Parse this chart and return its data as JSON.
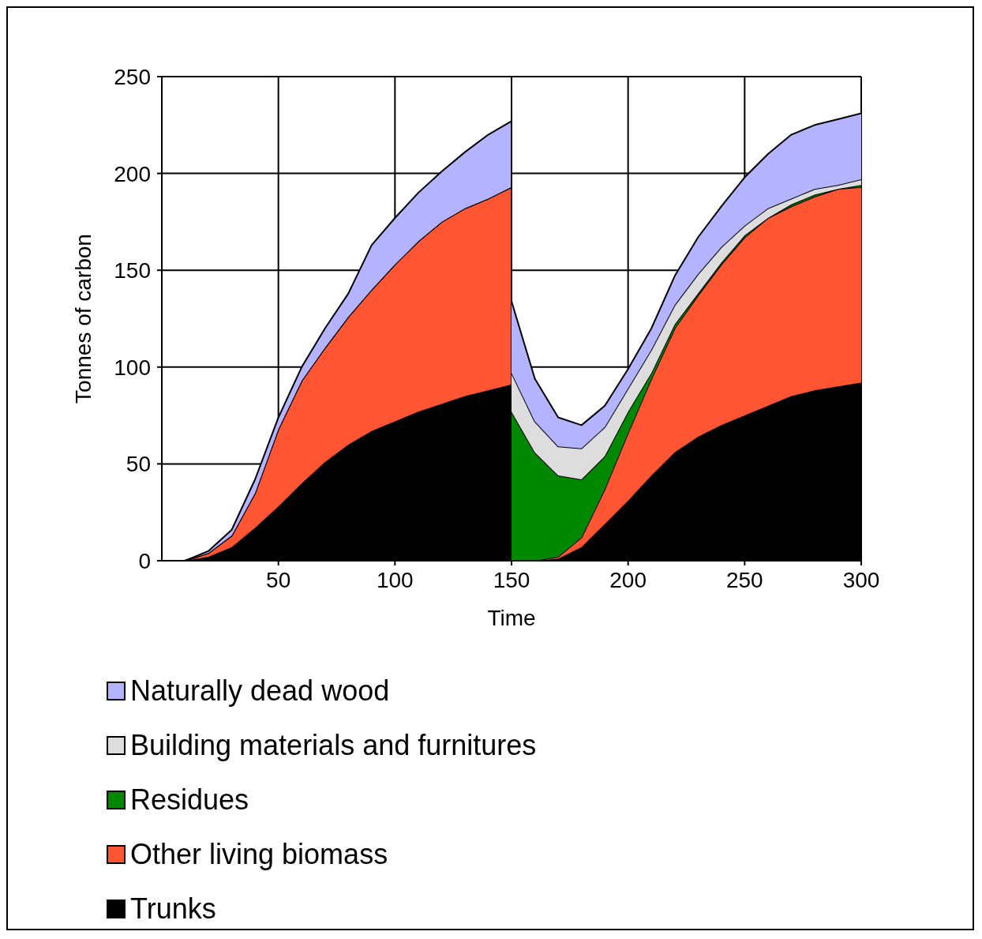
{
  "chart_data": {
    "type": "area",
    "stacked": true,
    "xlabel": "Time",
    "ylabel": "Tonnes of carbon",
    "x": [
      0,
      10,
      20,
      30,
      40,
      50,
      60,
      70,
      80,
      90,
      100,
      110,
      120,
      130,
      140,
      150,
      150,
      160,
      170,
      180,
      190,
      200,
      210,
      220,
      230,
      240,
      250,
      260,
      270,
      280,
      290,
      300
    ],
    "series": [
      {
        "name": "Trunks",
        "color": "#000000",
        "values": [
          0,
          0,
          2,
          7,
          17,
          28,
          40,
          51,
          60,
          67,
          72,
          77,
          81,
          85,
          88,
          91,
          0,
          0,
          1,
          7,
          19,
          31,
          44,
          56,
          64,
          70,
          75,
          80,
          85,
          88,
          90,
          92
        ]
      },
      {
        "name": "Other living biomass",
        "color": "#ff5533",
        "values": [
          0,
          0,
          2,
          6,
          18,
          40,
          53,
          59,
          66,
          73,
          81,
          88,
          94,
          97,
          99,
          102,
          0,
          0,
          1,
          5,
          18,
          35,
          50,
          64,
          73,
          83,
          92,
          97,
          98,
          100,
          102,
          101
        ]
      },
      {
        "name": "Residues",
        "color": "#008800",
        "values": [
          0,
          0,
          0,
          0,
          0,
          0,
          0,
          0,
          0,
          0,
          0,
          0,
          0,
          0,
          0,
          0,
          77,
          56,
          42,
          30,
          17,
          11,
          3,
          2,
          1,
          1,
          1,
          0,
          1,
          1,
          0,
          1
        ]
      },
      {
        "name": "Building materials and furnitures",
        "color": "#dddddd",
        "values": [
          0,
          0,
          0,
          0,
          0,
          0,
          0,
          0,
          0,
          0,
          0,
          0,
          0,
          0,
          0,
          0,
          20,
          16,
          15,
          16,
          15,
          12,
          12,
          10,
          10,
          8,
          5,
          5,
          3,
          3,
          2,
          3
        ]
      },
      {
        "name": "Naturally dead wood",
        "color": "#b3b3ff",
        "values": [
          0,
          0,
          1,
          3,
          7,
          6,
          7,
          10,
          12,
          23,
          24,
          25,
          26,
          29,
          33,
          34,
          37,
          22,
          15,
          12,
          11,
          10,
          11,
          15,
          19,
          21,
          25,
          28,
          33,
          33,
          34,
          34
        ]
      }
    ],
    "xlim": [
      0,
      300
    ],
    "xticks": [
      50,
      100,
      150,
      200,
      250,
      300
    ],
    "ylim": [
      0,
      250
    ],
    "yticks": [
      0,
      50,
      100,
      150,
      200,
      250
    ],
    "grid": true,
    "legend": "bottom"
  }
}
